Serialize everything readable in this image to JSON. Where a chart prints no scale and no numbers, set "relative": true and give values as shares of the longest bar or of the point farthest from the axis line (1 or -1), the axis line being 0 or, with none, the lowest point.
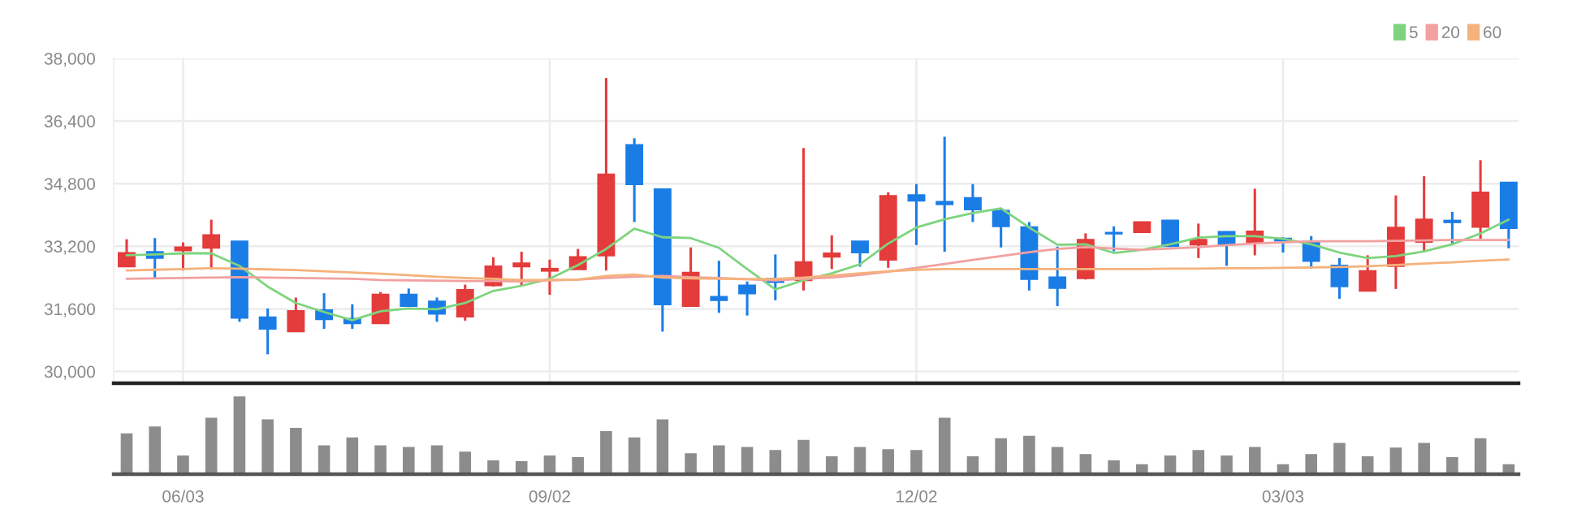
{
  "chart_data": [
    {
      "type": "candlestick",
      "categories": [
        null,
        null,
        null,
        null,
        null,
        null,
        null,
        null,
        null,
        null,
        null,
        null,
        null,
        null,
        null,
        null,
        null,
        null,
        null,
        null,
        null,
        null,
        null,
        null,
        null,
        null,
        null,
        null,
        null,
        null,
        null,
        null,
        null,
        null,
        null,
        null,
        null,
        null,
        null,
        null,
        null,
        null,
        null,
        null,
        null,
        null,
        null,
        null,
        null,
        null
      ],
      "ohlc": [
        [
          32690,
          33380,
          32690,
          33020
        ],
        [
          33050,
          33410,
          32370,
          32910
        ],
        [
          33100,
          33300,
          32580,
          33170
        ],
        [
          33170,
          33880,
          32610,
          33480
        ],
        [
          33320,
          33320,
          31270,
          31380
        ],
        [
          31380,
          31610,
          30440,
          31100
        ],
        [
          31030,
          31890,
          31030,
          31540
        ],
        [
          31560,
          32000,
          31090,
          31340
        ],
        [
          31340,
          31720,
          31090,
          31240
        ],
        [
          31240,
          32030,
          31240,
          31960
        ],
        [
          31960,
          32120,
          31680,
          31680
        ],
        [
          31780,
          31890,
          31270,
          31480
        ],
        [
          31410,
          32220,
          31300,
          32080
        ],
        [
          32210,
          32920,
          32170,
          32680
        ],
        [
          32690,
          33060,
          32190,
          32760
        ],
        [
          32580,
          32860,
          31960,
          32620
        ],
        [
          32620,
          33130,
          32620,
          32920
        ],
        [
          32970,
          37500,
          32580,
          35030
        ],
        [
          35780,
          35960,
          33820,
          34790
        ],
        [
          34650,
          34650,
          31020,
          31720
        ],
        [
          31680,
          33170,
          31680,
          32520
        ],
        [
          31900,
          32830,
          31500,
          31830
        ],
        [
          32190,
          32300,
          31430,
          32000
        ],
        [
          32370,
          32990,
          31820,
          32290
        ],
        [
          32340,
          35710,
          32070,
          32790
        ],
        [
          32940,
          33480,
          32620,
          33010
        ],
        [
          33320,
          33320,
          32680,
          33050
        ],
        [
          32860,
          34580,
          32650,
          34480
        ],
        [
          34500,
          34790,
          33230,
          34370
        ],
        [
          34330,
          36000,
          33060,
          34280
        ],
        [
          34430,
          34790,
          33820,
          34150
        ],
        [
          34100,
          34170,
          33170,
          33720
        ],
        [
          33680,
          33820,
          32070,
          32370
        ],
        [
          32400,
          33190,
          31670,
          32140
        ],
        [
          32390,
          33530,
          32350,
          33360
        ],
        [
          33540,
          33710,
          33070,
          33530
        ],
        [
          33570,
          33810,
          33570,
          33810
        ],
        [
          33850,
          33850,
          33180,
          33210
        ],
        [
          33250,
          33780,
          32900,
          33360
        ],
        [
          33560,
          33560,
          32700,
          33250
        ],
        [
          33320,
          34670,
          32970,
          33570
        ],
        [
          33390,
          33430,
          33040,
          33350
        ],
        [
          33290,
          33460,
          32630,
          32830
        ],
        [
          32700,
          32900,
          31860,
          32180
        ],
        [
          32070,
          32970,
          32070,
          32560
        ],
        [
          32700,
          34500,
          32110,
          33670
        ],
        [
          33320,
          34990,
          33040,
          33880
        ],
        [
          33850,
          34080,
          33250,
          33820
        ],
        [
          33700,
          35400,
          33390,
          34570
        ],
        [
          34820,
          34820,
          33150,
          33670
        ]
      ],
      "colors": [
        "#e43b3b",
        "#1a7de6",
        "#e43b3b",
        "#e43b3b",
        "#1a7de6",
        "#1a7de6",
        "#e43b3b",
        "#1a7de6",
        "#1a7de6",
        "#e43b3b",
        "#1a7de6",
        "#1a7de6",
        "#e43b3b",
        "#e43b3b",
        "#e43b3b",
        "#e43b3b",
        "#e43b3b",
        "#e43b3b",
        "#1a7de6",
        "#1a7de6",
        "#e43b3b",
        "#1a7de6",
        "#1a7de6",
        "#1a7de6",
        "#e43b3b",
        "#e43b3b",
        "#1a7de6",
        "#e43b3b",
        "#1a7de6",
        "#1a7de6",
        "#1a7de6",
        "#1a7de6",
        "#1a7de6",
        "#1a7de6",
        "#e43b3b",
        "#1a7de6",
        "#e43b3b",
        "#1a7de6",
        "#e43b3b",
        "#1a7de6",
        "#e43b3b",
        "#1a7de6",
        "#1a7de6",
        "#1a7de6",
        "#e43b3b",
        "#e43b3b",
        "#e43b3b",
        "#1a7de6",
        "#e43b3b",
        "#1a7de6"
      ],
      "series": [
        {
          "type": "line",
          "name": "5",
          "color": "#7ed47e",
          "values": [
            32970,
            32990,
            33020,
            33020,
            32700,
            32170,
            31750,
            31520,
            31310,
            31540,
            31610,
            31590,
            31750,
            32060,
            32190,
            32370,
            32720,
            33130,
            33650,
            33430,
            33410,
            33160,
            32620,
            32100,
            32330,
            32510,
            32740,
            33270,
            33680,
            33890,
            34050,
            34170,
            33680,
            33240,
            33250,
            33030,
            33110,
            33250,
            33420,
            33460,
            33460,
            33390,
            33250,
            33040,
            32900,
            32950,
            33070,
            33250,
            33530,
            33880
          ]
        },
        {
          "type": "line",
          "name": "20",
          "color": "#f2a0a0",
          "values": [
            32370,
            32380,
            32390,
            32400,
            32410,
            32400,
            32390,
            32380,
            32370,
            32340,
            32330,
            32320,
            32310,
            32310,
            32300,
            32330,
            32350,
            32390,
            32420,
            32440,
            32410,
            32390,
            32360,
            32330,
            32370,
            32400,
            32470,
            32550,
            32650,
            32750,
            32850,
            32950,
            33050,
            33130,
            33180,
            33140,
            33110,
            33140,
            33180,
            33230,
            33270,
            33300,
            33330,
            33330,
            33330,
            33340,
            33350,
            33360,
            33360,
            33360
          ]
        },
        {
          "type": "line",
          "name": "60",
          "color": "#f5b27c",
          "values": [
            32580,
            32600,
            32620,
            32640,
            32630,
            32610,
            32590,
            32560,
            32530,
            32500,
            32460,
            32420,
            32390,
            32370,
            32340,
            32340,
            32350,
            32440,
            32480,
            32400,
            32380,
            32370,
            32360,
            32370,
            32400,
            32450,
            32510,
            32560,
            32600,
            32620,
            32620,
            32620,
            32620,
            32620,
            32620,
            32620,
            32620,
            32630,
            32630,
            32640,
            32640,
            32650,
            32660,
            32670,
            32690,
            32720,
            32760,
            32790,
            32830,
            32860
          ]
        }
      ],
      "ylim": [
        29700,
        38000
      ],
      "yticks": [
        {
          "value": 30000,
          "label": "30,000"
        },
        {
          "value": 31600,
          "label": "31,600"
        },
        {
          "value": 33200,
          "label": "33,200"
        },
        {
          "value": 34800,
          "label": "34,800"
        },
        {
          "value": 36400,
          "label": "36,400"
        },
        {
          "value": 38000,
          "label": "38,000"
        }
      ],
      "grid": true,
      "legend": "top right",
      "tick_labels": "y"
    },
    {
      "type": "bar",
      "relative": true,
      "color": "#8c8c8c",
      "tick_labels": "x",
      "categories": [
        null,
        null,
        "06/03",
        null,
        null,
        null,
        null,
        null,
        null,
        null,
        null,
        null,
        null,
        null,
        null,
        "09/02",
        null,
        null,
        null,
        null,
        null,
        null,
        null,
        null,
        null,
        null,
        null,
        null,
        "12/02",
        null,
        null,
        null,
        null,
        null,
        null,
        null,
        null,
        null,
        null,
        null,
        null,
        "03/03",
        null,
        null,
        null,
        null,
        null,
        null,
        null,
        null
      ],
      "values": [
        0.53,
        0.62,
        0.25,
        0.73,
        1,
        0.71,
        0.6,
        0.38,
        0.48,
        0.38,
        0.36,
        0.38,
        0.3,
        0.19,
        0.18,
        0.25,
        0.23,
        0.56,
        0.48,
        0.71,
        0.28,
        0.38,
        0.36,
        0.32,
        0.45,
        0.24,
        0.36,
        0.33,
        0.32,
        0.73,
        0.24,
        0.47,
        0.5,
        0.36,
        0.27,
        0.19,
        0.14,
        0.25,
        0.32,
        0.25,
        0.36,
        0.14,
        0.27,
        0.41,
        0.24,
        0.35,
        0.41,
        0.23,
        0.47,
        0.14
      ]
    }
  ]
}
